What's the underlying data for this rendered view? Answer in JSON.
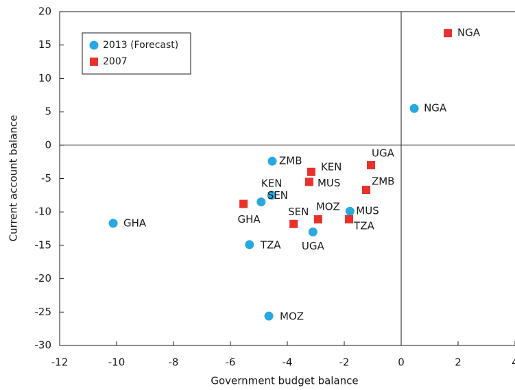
{
  "chart_data": {
    "type": "scatter",
    "xlabel": "Government budget balance",
    "ylabel": "Current account balance",
    "xlim": [
      -12,
      4
    ],
    "xticks": [
      -12,
      -10,
      -8,
      -6,
      -4,
      -2,
      0,
      2,
      4
    ],
    "ylim": [
      -30,
      20
    ],
    "yticks": [
      -30,
      -25,
      -20,
      -15,
      -10,
      -5,
      0,
      5,
      10,
      15,
      20
    ],
    "legend": "upper left",
    "series": [
      {
        "name": "2013 (Forecast)",
        "color": "#29a8e0",
        "marker": "circle",
        "labels": [
          "GHA",
          "ZMB",
          "KEN",
          "SEN",
          "TZA",
          "UGA",
          "MUS",
          "MOZ",
          "NGA"
        ],
        "x": [
          -10.12,
          -4.53,
          -4.55,
          -4.92,
          -5.33,
          -3.1,
          -1.8,
          -4.65,
          0.46
        ],
        "values": [
          -11.7,
          -2.4,
          -7.5,
          -8.5,
          -14.9,
          -13,
          -9.9,
          -25.6,
          5.5
        ]
      },
      {
        "name": "2007",
        "color": "#e8312a",
        "marker": "square",
        "labels": [
          "NGA",
          "UGA",
          "ZMB",
          "KEN",
          "MUS",
          "GHA",
          "SEN",
          "MOZ",
          "TZA"
        ],
        "x": [
          1.64,
          -1.06,
          -1.23,
          -3.16,
          -3.23,
          -5.54,
          -3.78,
          -2.92,
          -1.83
        ],
        "values": [
          16.8,
          -3.0,
          -6.7,
          -4.0,
          -5.5,
          -8.8,
          -11.8,
          -11.1,
          -11.1
        ]
      }
    ]
  }
}
